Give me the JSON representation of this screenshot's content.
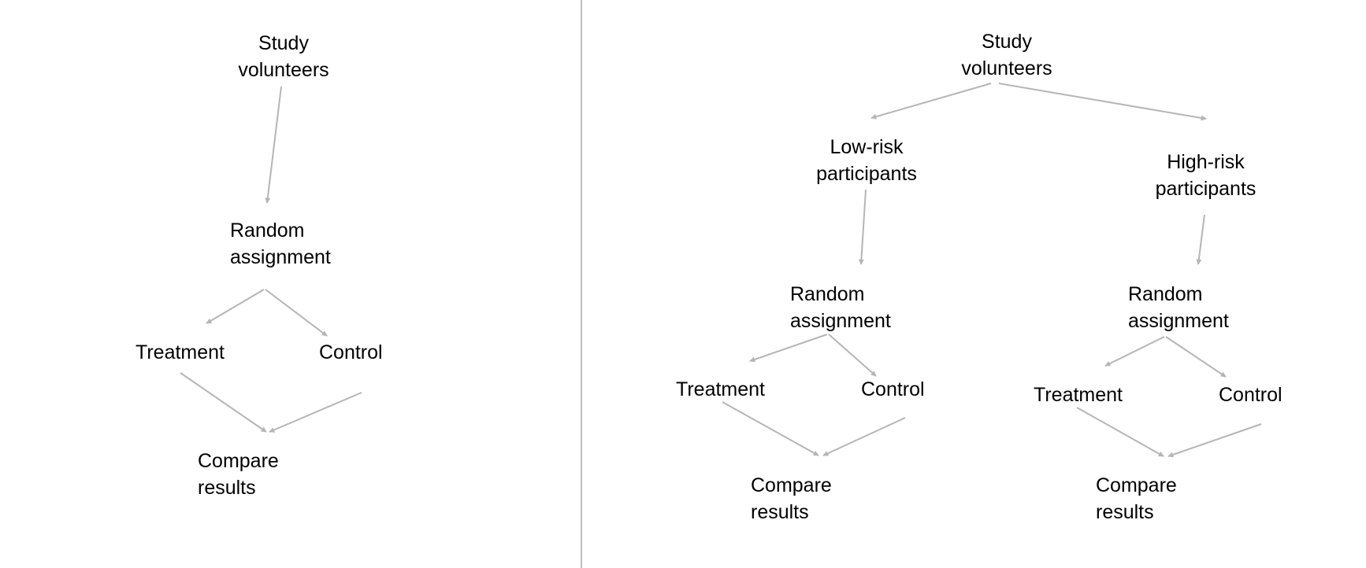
{
  "simple_design": {
    "volunteers": {
      "line1": "Study",
      "line2": "volunteers"
    },
    "random": {
      "line1": "Random",
      "line2": "assignment"
    },
    "treatment": "Treatment",
    "control": "Control",
    "compare": {
      "line1": "Compare",
      "line2": "results"
    }
  },
  "blocked_design": {
    "volunteers": {
      "line1": "Study",
      "line2": "volunteers"
    },
    "low_risk": {
      "label": {
        "line1": "Low-risk",
        "line2": "participants"
      },
      "random": {
        "line1": "Random",
        "line2": "assignment"
      },
      "treatment": "Treatment",
      "control": "Control",
      "compare": {
        "line1": "Compare",
        "line2": "results"
      }
    },
    "high_risk": {
      "label": {
        "line1": "High-risk",
        "line2": "participants"
      },
      "random": {
        "line1": "Random",
        "line2": "assignment"
      },
      "treatment": "Treatment",
      "control": "Control",
      "compare": {
        "line1": "Compare",
        "line2": "results"
      }
    }
  },
  "colors": {
    "arrow": "#b5b5b5",
    "divider": "#bdbdbd",
    "text": "#000000"
  }
}
